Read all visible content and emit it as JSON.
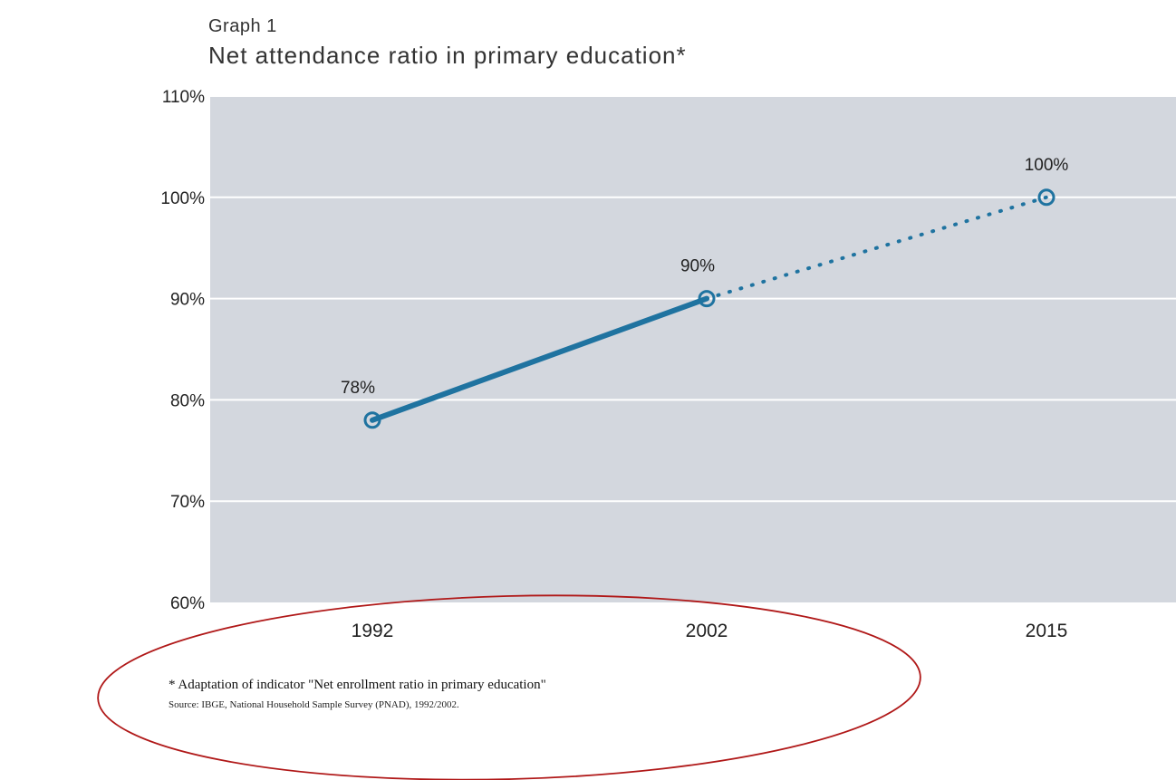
{
  "graph_label": "Graph 1",
  "footnote": "* Adaptation of indicator \"Net enrollment ratio in primary education\"",
  "source": "Source: IBGE, National Household Sample Survey (PNAD), 1992/2002.",
  "colors": {
    "plot_background": "#d3d7de",
    "gridline": "#ffffff",
    "series": "#1f73a0",
    "annotation_ellipse": "#b01818"
  },
  "chart_data": {
    "type": "line",
    "title": "Net attendance ratio in primary education*",
    "xlabel": "",
    "ylabel": "",
    "categories": [
      "1992",
      "2002",
      "2015"
    ],
    "y_ticks": [
      "110%",
      "100%",
      "90%",
      "80%",
      "70%",
      "60%"
    ],
    "y_tick_values": [
      110,
      100,
      90,
      80,
      70,
      60
    ],
    "ylim": [
      60,
      110
    ],
    "grid": true,
    "series": [
      {
        "values": [
          78,
          90,
          100
        ],
        "labels": [
          "78%",
          "90%",
          "100%"
        ],
        "segments": [
          "solid",
          "dotted"
        ]
      }
    ]
  }
}
